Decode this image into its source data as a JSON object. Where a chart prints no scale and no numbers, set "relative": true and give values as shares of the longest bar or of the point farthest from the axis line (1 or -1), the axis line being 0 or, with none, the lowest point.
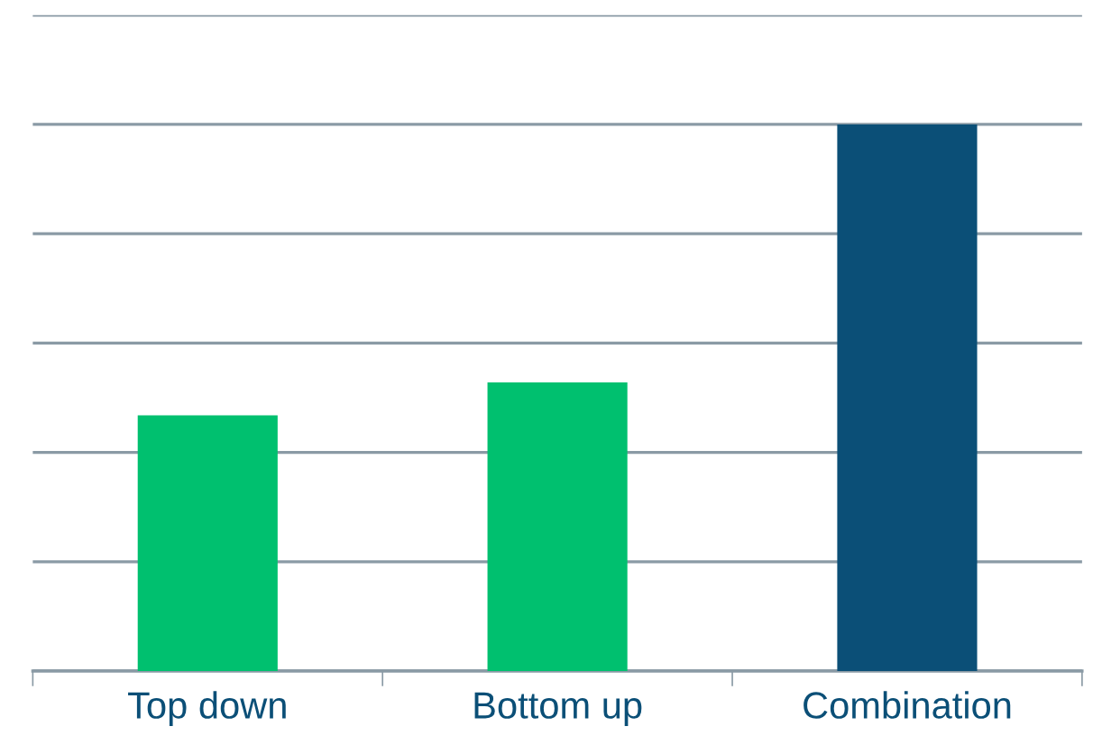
{
  "chart_data": {
    "type": "bar",
    "relative": true,
    "categories": [
      "Top down",
      "Bottom up",
      "Combination"
    ],
    "values": [
      0.468,
      0.528,
      1
    ],
    "colors": [
      "#00c06f",
      "#00c06f",
      "#0b4f77"
    ],
    "grid": "y",
    "tick_labels": "x"
  }
}
